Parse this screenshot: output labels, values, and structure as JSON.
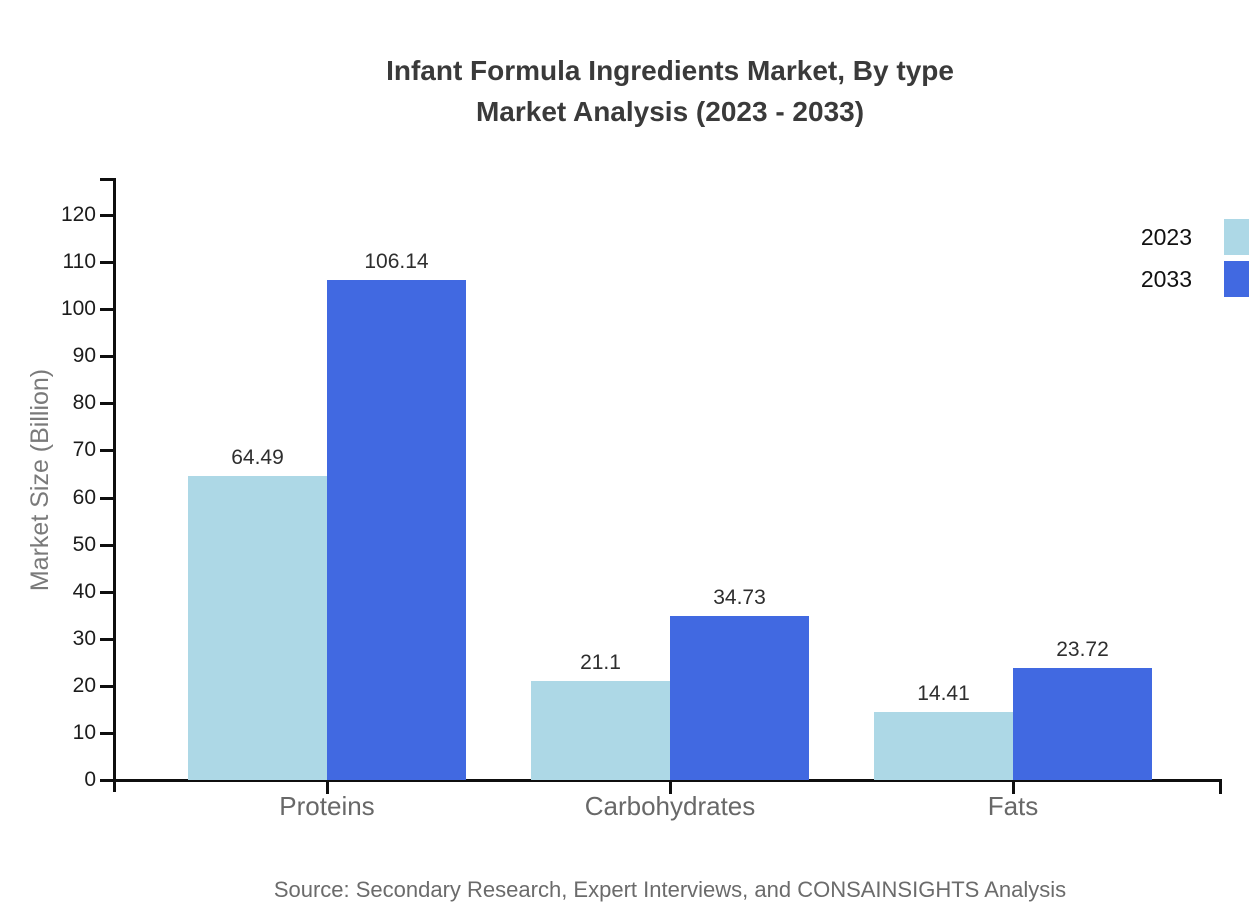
{
  "title": {
    "line1": "Infant Formula Ingredients Market, By type",
    "line2": "Market Analysis (2023 - 2033)"
  },
  "source": "Source: Secondary Research, Expert Interviews, and CONSAINSIGHTS Analysis",
  "chart_data": {
    "type": "bar",
    "title": "Infant Formula Ingredients Market, By type Market Analysis (2023 - 2033)",
    "categories": [
      "Proteins",
      "Carbohydrates",
      "Fats"
    ],
    "series": [
      {
        "name": "2023",
        "color": "#ADD8E6",
        "values": [
          64.49,
          21.1,
          14.41
        ]
      },
      {
        "name": "2033",
        "color": "#4169E1",
        "values": [
          106.14,
          34.73,
          23.72
        ]
      }
    ],
    "value_labels": {
      "2023": [
        "64.49",
        "21.1",
        "14.41"
      ],
      "2033": [
        "106.14",
        "34.73",
        "23.72"
      ]
    },
    "xlabel": "",
    "ylabel": "Market Size (Billion)",
    "ylim": [
      0,
      120
    ],
    "ytick_step": 10,
    "ytick_labels": [
      "0",
      "10",
      "20",
      "30",
      "40",
      "50",
      "60",
      "70",
      "80",
      "90",
      "100",
      "110",
      "120"
    ],
    "grid": false,
    "legend_position": "top-right",
    "axis_color": "#0f0f0f",
    "background_color": "#ffffff"
  }
}
